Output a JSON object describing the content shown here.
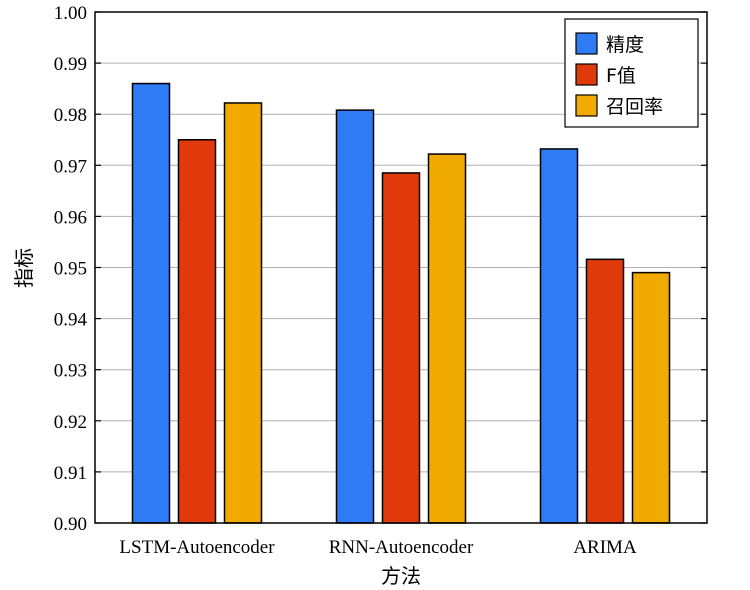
{
  "chart_data": {
    "type": "bar",
    "title": "",
    "xlabel": "方法",
    "ylabel": "指标",
    "categories": [
      "LSTM-Autoencoder",
      "RNN-Autoencoder",
      "ARIMA"
    ],
    "series": [
      {
        "name": "精度",
        "color": "#2f7bf5",
        "values": [
          0.986,
          0.9808,
          0.9732
        ]
      },
      {
        "name": "F值",
        "color": "#e03a0c",
        "values": [
          0.975,
          0.9685,
          0.9516
        ]
      },
      {
        "name": "召回率",
        "color": "#f0aa00",
        "values": [
          0.9822,
          0.9722,
          0.949
        ]
      }
    ],
    "ylim": [
      0.9,
      1.0
    ],
    "yticks": [
      "0.90",
      "0.91",
      "0.92",
      "0.93",
      "0.94",
      "0.95",
      "0.96",
      "0.97",
      "0.98",
      "0.99",
      "1.00"
    ],
    "grid": true,
    "legend_position": "top-right"
  }
}
